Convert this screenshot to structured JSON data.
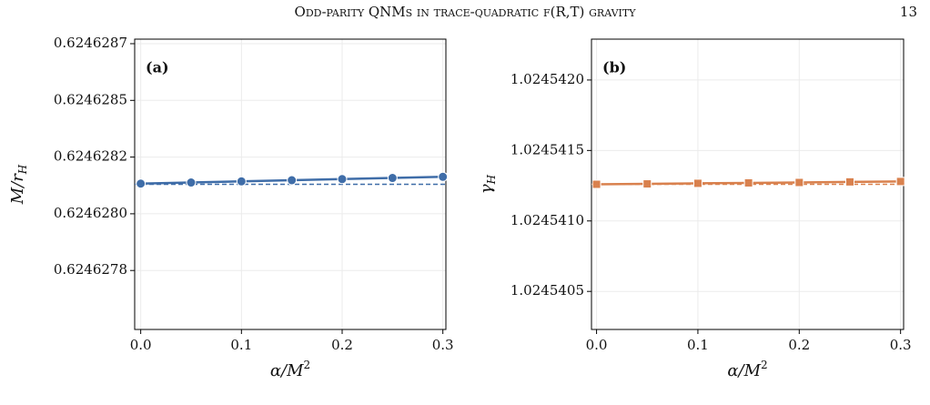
{
  "header": {
    "title": "Odd-parity QNMs in trace-quadratic f(R,T) gravity",
    "page": "13"
  },
  "chart_data": [
    {
      "type": "line",
      "annotation": "(a)",
      "xlabel": [
        "α/M",
        "2"
      ],
      "ylabel": [
        "M/r",
        "H"
      ],
      "x": [
        0,
        0.05,
        0.1,
        0.15,
        0.2,
        0.25,
        0.3
      ],
      "series": [
        {
          "color": "#3f6da8",
          "marker": "circle",
          "values": [
            0.624628133,
            0.624628138,
            0.624628143,
            0.624628148,
            0.624628153,
            0.624628158,
            0.624628163
          ]
        }
      ],
      "hline": 0.62462813,
      "hline_style": "dashed",
      "xlim": [
        -0.006,
        0.303
      ],
      "xticks": [
        {
          "value": 0,
          "label": "0.0"
        },
        0.1,
        0.2,
        0.3
      ],
      "ylim": [
        0.62462749,
        0.62462877
      ],
      "yticks": [
        {
          "value": 0.62462775,
          "label": "0.6246278"
        },
        {
          "value": 0.624628,
          "label": "0.6246280"
        },
        {
          "value": 0.62462825,
          "label": "0.6246282"
        },
        0.6246285,
        {
          "value": 0.62462875,
          "label": "0.6246287"
        }
      ],
      "grid": true
    },
    {
      "type": "line",
      "annotation": "(b)",
      "xlabel": [
        "α/M",
        "2"
      ],
      "ylabel": [
        "γ",
        "H"
      ],
      "x": [
        0,
        0.05,
        0.1,
        0.15,
        0.2,
        0.25,
        0.3
      ],
      "series": [
        {
          "color": "#d9814e",
          "marker": "square",
          "values": [
            1.02454126,
            1.024541263,
            1.024541267,
            1.02454127,
            1.024541273,
            1.024541277,
            1.02454128
          ]
        }
      ],
      "hline": 1.02454126,
      "hline_style": "dashed",
      "xlim": [
        -0.005,
        0.303
      ],
      "xticks": [
        {
          "value": 0,
          "label": "0.0"
        },
        0.1,
        0.2,
        0.3
      ],
      "ylim": [
        1.02454023,
        1.02454229
      ],
      "yticks": [
        1.0245405,
        {
          "value": 1.024541,
          "label": "1.0245410"
        },
        1.0245415,
        {
          "value": 1.024542,
          "label": "1.0245420"
        }
      ],
      "grid": true
    }
  ]
}
